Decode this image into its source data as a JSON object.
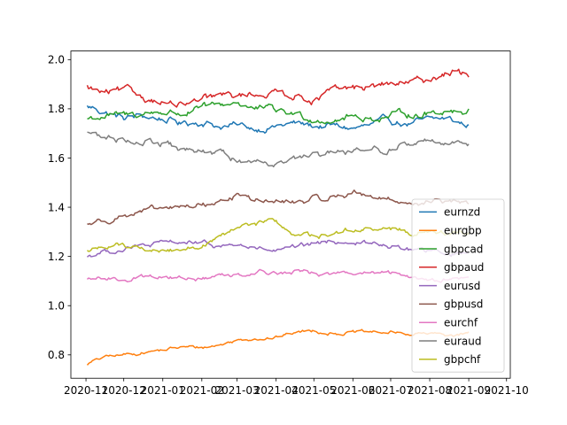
{
  "chart_data": {
    "type": "line",
    "title": "",
    "xlabel": "",
    "ylabel": "",
    "x_tick_labels": [
      "2020-11",
      "2020-12",
      "2021-01",
      "2021-02",
      "2021-03",
      "2021-04",
      "2021-05",
      "2021-06",
      "2021-07",
      "2021-08",
      "2021-09",
      "2021-10"
    ],
    "y_tick_labels": [
      "0.8",
      "1.0",
      "1.2",
      "1.4",
      "1.6",
      "1.8",
      "2.0"
    ],
    "xlim": [
      "2020-10-20",
      "2021-10-04"
    ],
    "ylim": [
      0.705,
      2.035
    ],
    "grid": false,
    "legend_position": "lower right",
    "x": [
      "2020-11-01",
      "2020-11-15",
      "2020-12-01",
      "2020-12-15",
      "2021-01-01",
      "2021-01-15",
      "2021-02-01",
      "2021-02-15",
      "2021-03-01",
      "2021-03-15",
      "2021-04-01",
      "2021-04-15",
      "2021-05-01",
      "2021-05-15",
      "2021-06-01",
      "2021-06-15",
      "2021-07-01",
      "2021-07-15",
      "2021-08-01",
      "2021-08-15",
      "2021-09-01"
    ],
    "series": [
      {
        "name": "eurnzd",
        "color": "#1f77b4",
        "values": [
          1.81,
          1.79,
          1.76,
          1.77,
          1.76,
          1.74,
          1.75,
          1.73,
          1.73,
          1.72,
          1.73,
          1.74,
          1.73,
          1.73,
          1.72,
          1.73,
          1.75,
          1.74,
          1.75,
          1.76,
          1.73
        ]
      },
      {
        "name": "eurgbp",
        "color": "#ff7f0e",
        "values": [
          0.76,
          0.79,
          0.8,
          0.81,
          0.82,
          0.83,
          0.83,
          0.84,
          0.86,
          0.87,
          0.87,
          0.89,
          0.9,
          0.89,
          0.89,
          0.89,
          0.89,
          0.885,
          0.885,
          0.88,
          0.89
        ]
      },
      {
        "name": "gbpcad",
        "color": "#2ca02c",
        "values": [
          1.76,
          1.77,
          1.77,
          1.78,
          1.79,
          1.78,
          1.8,
          1.81,
          1.83,
          1.8,
          1.79,
          1.78,
          1.76,
          1.76,
          1.77,
          1.76,
          1.77,
          1.78,
          1.78,
          1.8,
          1.79
        ]
      },
      {
        "name": "gbpaud",
        "color": "#d62728",
        "values": [
          1.89,
          1.86,
          1.87,
          1.85,
          1.83,
          1.81,
          1.83,
          1.85,
          1.85,
          1.86,
          1.87,
          1.86,
          1.84,
          1.87,
          1.88,
          1.89,
          1.9,
          1.9,
          1.92,
          1.95,
          1.94
        ]
      },
      {
        "name": "eurusd",
        "color": "#9467bd",
        "values": [
          1.2,
          1.22,
          1.23,
          1.24,
          1.25,
          1.26,
          1.25,
          1.24,
          1.25,
          1.23,
          1.22,
          1.23,
          1.25,
          1.26,
          1.26,
          1.25,
          1.24,
          1.23,
          1.22,
          1.21,
          1.22
        ]
      },
      {
        "name": "gbpusd",
        "color": "#8c564b",
        "values": [
          1.33,
          1.35,
          1.37,
          1.38,
          1.39,
          1.4,
          1.41,
          1.42,
          1.45,
          1.43,
          1.42,
          1.42,
          1.43,
          1.44,
          1.46,
          1.45,
          1.43,
          1.42,
          1.42,
          1.42,
          1.41
        ]
      },
      {
        "name": "eurchf",
        "color": "#e377c2",
        "values": [
          1.1,
          1.11,
          1.11,
          1.12,
          1.12,
          1.11,
          1.11,
          1.12,
          1.13,
          1.14,
          1.14,
          1.14,
          1.13,
          1.13,
          1.13,
          1.13,
          1.13,
          1.12,
          1.11,
          1.11,
          1.11
        ]
      },
      {
        "name": "euraud",
        "color": "#7f7f7f",
        "values": [
          1.71,
          1.68,
          1.68,
          1.67,
          1.66,
          1.63,
          1.62,
          1.62,
          1.59,
          1.59,
          1.59,
          1.6,
          1.6,
          1.61,
          1.62,
          1.63,
          1.64,
          1.66,
          1.67,
          1.67,
          1.66
        ]
      },
      {
        "name": "gbpchf",
        "color": "#bcbd22",
        "values": [
          1.22,
          1.24,
          1.25,
          1.23,
          1.22,
          1.23,
          1.25,
          1.27,
          1.31,
          1.33,
          1.34,
          1.29,
          1.28,
          1.29,
          1.31,
          1.31,
          1.31,
          1.3,
          1.3,
          1.29,
          1.29
        ]
      }
    ]
  }
}
